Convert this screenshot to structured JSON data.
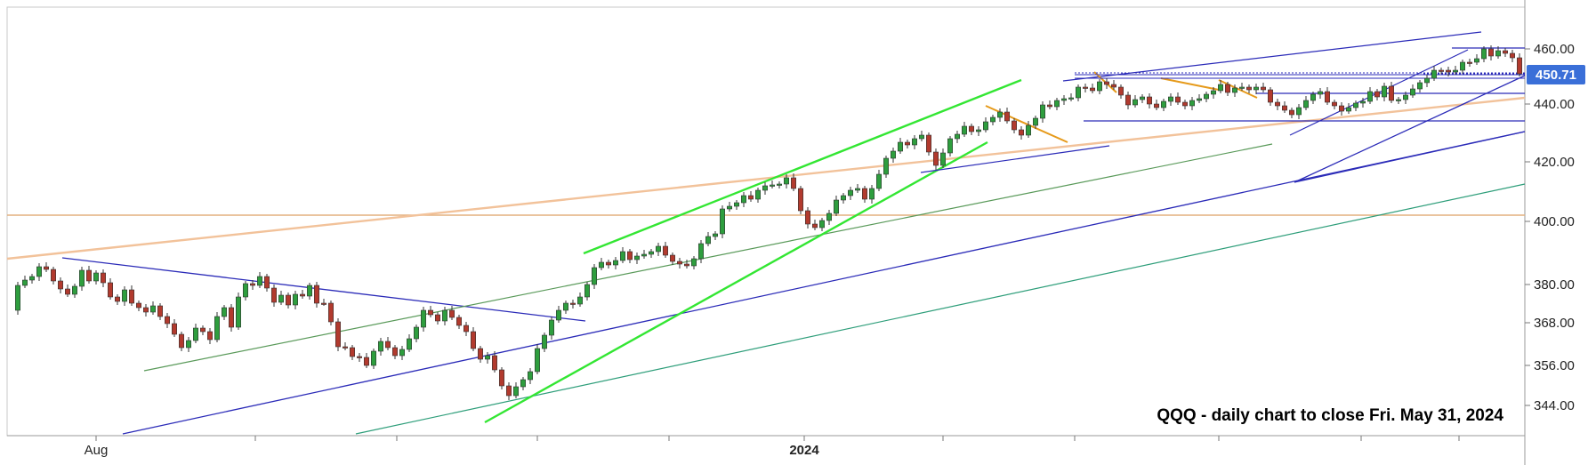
{
  "chart_data": {
    "type": "candlestick",
    "title": "QQQ - daily chart to close Fri. May 31, 2024",
    "last_price": "450.71",
    "y_axis": {
      "ticks": [
        "460.00",
        "440.00",
        "420.00",
        "400.00",
        "380.00",
        "368.00",
        "356.00",
        "344.00"
      ]
    },
    "x_axis": {
      "labels": [
        "Aug",
        "2024"
      ]
    },
    "colors": {
      "up": "#2e9e3e",
      "down": "#b23a2e",
      "price_tag": "#3a6fd8",
      "trend_blue": "#2b2bb8",
      "trend_green_bright": "#33e633",
      "trend_green_thin": "#5a9a5a",
      "trend_teal": "#2e9e7a",
      "trend_peach": "#f2c29a",
      "trend_orange": "#e69a1a",
      "horizontal_tan": "#e3b07e"
    }
  }
}
